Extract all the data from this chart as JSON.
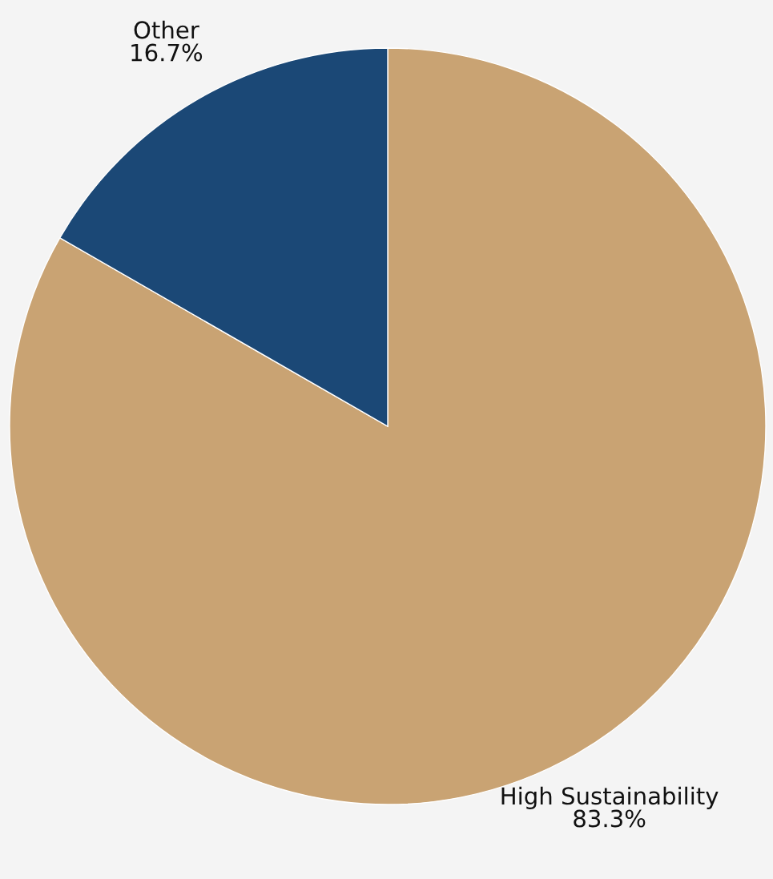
{
  "chart_data": {
    "type": "pie",
    "categories": [
      "High Sustainability",
      "Other"
    ],
    "values": [
      83.3,
      16.7
    ],
    "value_labels": [
      "83.3%",
      "16.7%"
    ],
    "colors": [
      "#c9a373",
      "#1b4876"
    ]
  }
}
